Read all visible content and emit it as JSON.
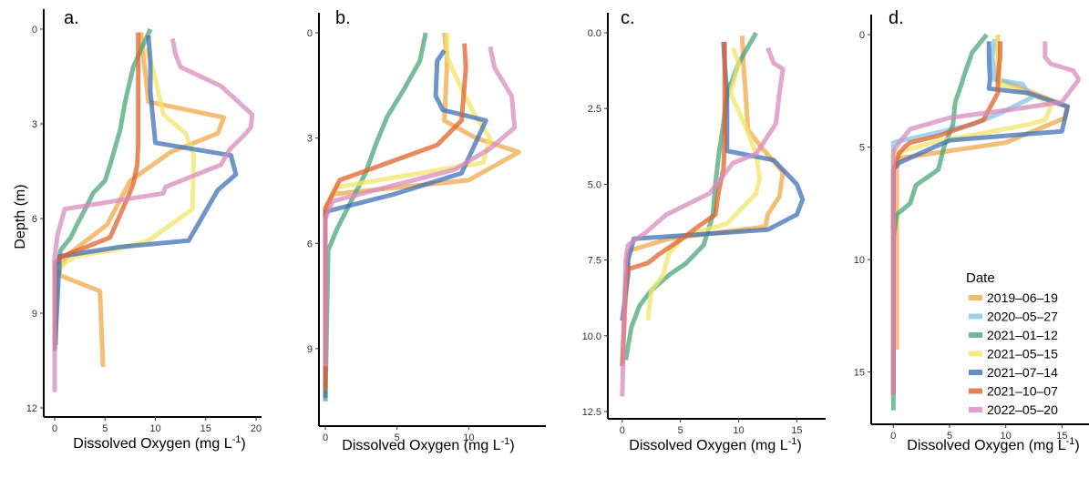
{
  "figure": {
    "x_axis_title": "Dissolved Oxygen (mg L",
    "x_axis_title_sup": "-1",
    "x_axis_title_close": ")",
    "y_axis_title": "Depth (m)"
  },
  "legend": {
    "title": "Date",
    "entries": [
      {
        "label": "2019–06–19",
        "color": "#F0A848"
      },
      {
        "label": "2020–05–27",
        "color": "#86C2E6"
      },
      {
        "label": "2021–01–12",
        "color": "#4AA57A"
      },
      {
        "label": "2021–05–15",
        "color": "#F3E667"
      },
      {
        "label": "2021–07–14",
        "color": "#3E70B8"
      },
      {
        "label": "2021–10–07",
        "color": "#E0622A"
      },
      {
        "label": "2022–05–20",
        "color": "#D88BBE"
      }
    ]
  },
  "chart_data": [
    {
      "type": "line",
      "panel": "a.",
      "xlabel": "Dissolved Oxygen (mg L-1)",
      "ylabel": "Depth (m)",
      "xlim": [
        0,
        20
      ],
      "ylim": [
        0,
        12
      ],
      "y_reversed": true,
      "x_ticks": [
        "0",
        "5",
        "10",
        "15",
        "20"
      ],
      "y_ticks": [
        "0",
        "3",
        "6",
        "9",
        "12"
      ],
      "x_tick_values": [
        0,
        5,
        10,
        15,
        20
      ],
      "y_tick_values": [
        0,
        3,
        6,
        9,
        12
      ],
      "series": [
        {
          "name": "2019–06–19",
          "x": [
            8.6,
            8.7,
            9.3,
            16.8,
            16.2,
            11.5,
            7.5,
            5.2,
            1.5,
            0.5,
            0.5,
            4.5,
            4.8
          ],
          "y": [
            0.1,
            0.5,
            2.3,
            2.8,
            3.3,
            3.9,
            4.8,
            6.2,
            7.1,
            7.6,
            7.8,
            8.3,
            10.7
          ]
        },
        {
          "name": "2021–01–12",
          "x": [
            9.5,
            8.8,
            7.8,
            7.0,
            6.5,
            5.5,
            5.0,
            3.8,
            3.2,
            2.2,
            1.6,
            0.6,
            0.2,
            0.1
          ],
          "y": [
            0.0,
            0.5,
            1.2,
            2.3,
            3.2,
            4.3,
            4.8,
            5.2,
            5.6,
            6.2,
            6.6,
            7.0,
            7.6,
            10.0
          ]
        },
        {
          "name": "2021–05–15",
          "x": [
            9.0,
            9.8,
            10.3,
            10.8,
            13.0,
            13.8,
            13.7,
            9.3,
            5.8,
            2.0,
            0.2
          ],
          "y": [
            0.6,
            1.3,
            2.0,
            2.7,
            3.3,
            4.0,
            5.7,
            6.7,
            7.0,
            7.2,
            7.6
          ]
        },
        {
          "name": "2021–07–14",
          "x": [
            9.3,
            9.5,
            9.5,
            10.0,
            17.5,
            18.0,
            16.2,
            13.3,
            6.5,
            0.5,
            0.0
          ],
          "y": [
            0.2,
            1.0,
            2.0,
            3.6,
            4.0,
            4.6,
            5.1,
            6.7,
            6.9,
            7.2,
            10.2
          ]
        },
        {
          "name": "2021–10–07",
          "x": [
            8.3,
            8.3,
            8.3,
            8.3,
            8.2,
            7.8,
            7.3,
            5.5,
            0.8,
            0.0,
            0.0
          ],
          "y": [
            0.1,
            1.5,
            2.7,
            3.6,
            4.3,
            4.9,
            5.3,
            6.6,
            7.2,
            7.4,
            10.0
          ]
        },
        {
          "name": "2022–05–20",
          "x": [
            11.7,
            12.0,
            12.5,
            16.5,
            19.6,
            19.5,
            19.0,
            17.4,
            16.5,
            11.0,
            10.8,
            1.0,
            0.3,
            0.0,
            0.0
          ],
          "y": [
            0.3,
            0.8,
            1.2,
            1.8,
            2.7,
            3.1,
            3.3,
            3.8,
            4.3,
            5.0,
            5.2,
            5.7,
            6.5,
            7.2,
            11.5
          ]
        }
      ]
    },
    {
      "type": "line",
      "panel": "b.",
      "xlabel": "Dissolved Oxygen (mg L-1)",
      "ylabel": "",
      "xlim": [
        0,
        15
      ],
      "ylim": [
        0,
        11
      ],
      "y_reversed": true,
      "x_ticks": [
        "0",
        "5",
        "10"
      ],
      "y_ticks": [
        "0",
        "3",
        "6",
        "9"
      ],
      "x_tick_values": [
        0,
        5,
        10
      ],
      "y_tick_values": [
        0,
        3,
        6,
        9
      ],
      "series": [
        {
          "name": "2019–06–19",
          "x": [
            8.3,
            8.5,
            8.3,
            10.5,
            13.5,
            10.0,
            0.5,
            0.0,
            0.0
          ],
          "y": [
            0.0,
            0.8,
            2.5,
            3.0,
            3.4,
            4.2,
            4.6,
            5.2,
            10.0
          ]
        },
        {
          "name": "2021–01–12",
          "x": [
            7.0,
            6.6,
            5.5,
            4.3,
            3.5,
            2.8,
            1.8,
            0.8,
            0.2,
            0.0
          ],
          "y": [
            0.0,
            0.8,
            1.6,
            2.4,
            3.2,
            4.0,
            4.8,
            5.6,
            6.2,
            10.5
          ]
        },
        {
          "name": "2021–05–15",
          "x": [
            8.5,
            8.5,
            9.5,
            10.5,
            11.5,
            11.0,
            0.8,
            0.0,
            0.0
          ],
          "y": [
            0.0,
            0.7,
            1.6,
            2.4,
            3.0,
            3.7,
            4.4,
            5.0,
            10.0
          ]
        },
        {
          "name": "2021–07–14",
          "x": [
            8.3,
            7.8,
            7.7,
            8.2,
            11.2,
            9.5,
            4.8,
            0.0,
            0.0
          ],
          "y": [
            0.5,
            0.8,
            1.8,
            2.2,
            2.5,
            4.0,
            4.6,
            5.1,
            10.4
          ]
        },
        {
          "name": "2021–10–07",
          "x": [
            9.7,
            9.8,
            9.5,
            7.8,
            1.0,
            0.0,
            0.0
          ],
          "y": [
            0.3,
            1.0,
            2.5,
            3.2,
            4.2,
            5.0,
            10.2
          ]
        },
        {
          "name": "2022–05–20",
          "x": [
            11.5,
            11.8,
            13.0,
            13.2,
            11.5,
            9.0,
            0.5,
            0.0,
            0.0
          ],
          "y": [
            0.4,
            1.0,
            1.8,
            2.7,
            3.3,
            3.9,
            4.8,
            5.3,
            9.5
          ]
        }
      ]
    },
    {
      "type": "line",
      "panel": "c.",
      "xlabel": "Dissolved Oxygen (mg L-1)",
      "ylabel": "",
      "xlim": [
        -1,
        17
      ],
      "ylim": [
        0,
        12.5
      ],
      "y_reversed": true,
      "x_ticks": [
        "0",
        "5",
        "10",
        "15"
      ],
      "y_ticks": [
        "0.0",
        "2.5",
        "5.0",
        "7.5",
        "10.0",
        "12.5"
      ],
      "x_tick_values": [
        0,
        5,
        10,
        15
      ],
      "y_tick_values": [
        0,
        2.5,
        5.0,
        7.5,
        10.0,
        12.5
      ],
      "series": [
        {
          "name": "2019–06–19",
          "x": [
            10.3,
            10.4,
            10.6,
            10.8,
            12.0,
            13.8,
            13.5,
            12.5,
            12.3,
            4.0,
            0.5,
            0.0
          ],
          "y": [
            0.1,
            1.0,
            2.0,
            3.2,
            3.8,
            4.6,
            5.4,
            6.0,
            6.4,
            6.8,
            7.2,
            11.0
          ]
        },
        {
          "name": "2021–01–12",
          "x": [
            11.5,
            10.0,
            9.0,
            8.7,
            8.3,
            8.0,
            7.8,
            7.0,
            5.5,
            4.0,
            2.5,
            1.5,
            0.8,
            0.3
          ],
          "y": [
            0.0,
            1.0,
            2.0,
            3.0,
            4.0,
            5.0,
            6.0,
            7.0,
            7.6,
            8.0,
            8.5,
            9.0,
            9.7,
            10.8
          ]
        },
        {
          "name": "2021–05–15",
          "x": [
            9.5,
            10.0,
            9.3,
            10.5,
            11.5,
            11.8,
            11.5,
            9.0,
            5.3,
            4.0,
            3.5,
            2.5,
            2.2
          ],
          "y": [
            0.5,
            1.0,
            2.0,
            3.0,
            4.0,
            4.8,
            5.3,
            6.3,
            6.7,
            7.3,
            8.0,
            8.5,
            9.5
          ]
        },
        {
          "name": "2021–07–14",
          "x": [
            8.7,
            8.8,
            9.0,
            9.0,
            9.0,
            13.0,
            15.0,
            15.5,
            15.0,
            12.5,
            1.0,
            0.5,
            0.5,
            0.0
          ],
          "y": [
            0.3,
            1.0,
            2.0,
            3.0,
            3.9,
            4.2,
            5.0,
            5.5,
            6.0,
            6.5,
            6.8,
            7.5,
            8.0,
            9.5
          ]
        },
        {
          "name": "2021–10–07",
          "x": [
            8.8,
            8.8,
            8.8,
            8.8,
            8.7,
            8.3,
            8.0,
            6.5,
            5.5,
            3.2,
            2.2,
            0.5,
            0.3,
            0.0
          ],
          "y": [
            0.3,
            1.5,
            2.5,
            3.5,
            4.5,
            5.2,
            6.0,
            6.4,
            6.7,
            7.3,
            7.6,
            7.8,
            8.2,
            11.0
          ]
        },
        {
          "name": "2022–05–20",
          "x": [
            12.5,
            13.0,
            13.8,
            13.5,
            13.2,
            11.5,
            9.5,
            8.5,
            7.5,
            3.8,
            2.0,
            0.5,
            0.3,
            0.0
          ],
          "y": [
            0.5,
            1.0,
            1.2,
            2.0,
            3.0,
            4.0,
            4.3,
            4.8,
            5.3,
            6.0,
            6.6,
            7.0,
            7.5,
            12.0
          ]
        }
      ]
    },
    {
      "type": "line",
      "panel": "d.",
      "xlabel": "Dissolved Oxygen (mg L-1)",
      "ylabel": "",
      "xlim": [
        -1,
        17
      ],
      "ylim": [
        0,
        17
      ],
      "y_reversed": true,
      "x_ticks": [
        "0",
        "5",
        "10",
        "15"
      ],
      "y_ticks": [
        "0",
        "5",
        "10",
        "15"
      ],
      "x_tick_values": [
        0,
        5,
        10,
        15
      ],
      "y_tick_values": [
        0,
        5,
        10,
        15
      ],
      "series": [
        {
          "name": "2019–06–19",
          "x": [
            9.3,
            9.3,
            9.3,
            10.5,
            15.5,
            15.3,
            10.0,
            0.5,
            0.3,
            0.3
          ],
          "y": [
            0.0,
            1.5,
            2.0,
            2.2,
            3.2,
            3.7,
            4.8,
            5.5,
            6.0,
            14.0
          ]
        },
        {
          "name": "2020–05–27",
          "x": [
            9.0,
            8.8,
            9.0,
            11.5,
            12.3,
            9.5,
            7.0,
            0.0,
            0.0
          ],
          "y": [
            0.2,
            1.0,
            2.0,
            2.2,
            2.8,
            3.5,
            4.0,
            4.8,
            6.0
          ]
        },
        {
          "name": "2021–01–12",
          "x": [
            8.3,
            7.0,
            6.3,
            6.0,
            5.5,
            5.3,
            4.5,
            4.0,
            2.0,
            1.5,
            0.3,
            0.0,
            0.0
          ],
          "y": [
            0.0,
            0.8,
            1.8,
            2.3,
            3.0,
            4.0,
            5.0,
            6.0,
            6.7,
            7.5,
            8.0,
            9.0,
            16.7
          ]
        },
        {
          "name": "2021–05–15",
          "x": [
            9.3,
            9.3,
            9.5,
            13.0,
            14.0,
            13.5,
            12.0,
            3.5,
            0.0,
            0.0
          ],
          "y": [
            0.0,
            1.0,
            2.2,
            2.8,
            3.2,
            3.8,
            4.0,
            4.8,
            5.3,
            14.0
          ]
        },
        {
          "name": "2021–07–14",
          "x": [
            8.5,
            8.5,
            8.6,
            8.5,
            12.0,
            15.5,
            15.0,
            5.0,
            0.5,
            0.0,
            0.0
          ],
          "y": [
            0.3,
            1.0,
            2.0,
            2.4,
            2.6,
            3.2,
            4.3,
            4.7,
            5.7,
            6.0,
            16.0
          ]
        },
        {
          "name": "2021–10–07",
          "x": [
            9.5,
            9.5,
            9.3,
            9.3,
            8.0,
            4.0,
            1.5,
            1.0,
            0.5,
            0.0,
            0.0
          ],
          "y": [
            0.3,
            1.0,
            2.0,
            2.6,
            3.8,
            4.5,
            4.8,
            5.0,
            5.3,
            6.0,
            16.0
          ]
        },
        {
          "name": "2022–05–20",
          "x": [
            13.5,
            13.5,
            14.0,
            16.0,
            16.5,
            15.0,
            11.0,
            5.0,
            1.5,
            0.5,
            0.0,
            0.0
          ],
          "y": [
            0.3,
            1.0,
            1.3,
            1.6,
            2.0,
            3.0,
            3.3,
            3.7,
            4.2,
            4.8,
            5.2,
            16.0
          ]
        }
      ]
    }
  ]
}
